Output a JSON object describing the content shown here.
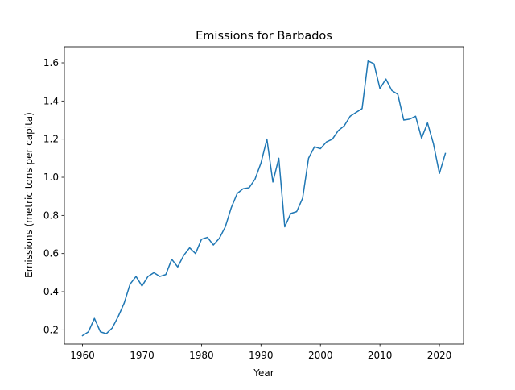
{
  "chart_data": {
    "type": "line",
    "title": "Emissions for Barbados",
    "xlabel": "Year",
    "ylabel": "Emissions (metric tons per capita)",
    "xlim": [
      1956.95,
      2024.05
    ],
    "ylim": [
      0.1255,
      1.6845
    ],
    "xticks": [
      1960,
      1970,
      1980,
      1990,
      2000,
      2010,
      2020
    ],
    "yticks": [
      0.2,
      0.4,
      0.6,
      0.8,
      1.0,
      1.2,
      1.4,
      1.6
    ],
    "ytick_labels": [
      "0.2",
      "0.4",
      "0.6",
      "0.8",
      "1.0",
      "1.2",
      "1.4",
      "1.6"
    ],
    "grid": false,
    "legend": "none",
    "series": [
      {
        "color": "#1f77b4",
        "x": [
          1960,
          1961,
          1962,
          1963,
          1964,
          1965,
          1966,
          1967,
          1968,
          1969,
          1970,
          1971,
          1972,
          1973,
          1974,
          1975,
          1976,
          1977,
          1978,
          1979,
          1980,
          1981,
          1982,
          1983,
          1984,
          1985,
          1986,
          1987,
          1988,
          1989,
          1990,
          1991,
          1992,
          1993,
          1994,
          1995,
          1996,
          1997,
          1998,
          1999,
          2000,
          2001,
          2002,
          2003,
          2004,
          2005,
          2006,
          2007,
          2008,
          2009,
          2010,
          2011,
          2012,
          2013,
          2014,
          2015,
          2016,
          2017,
          2018,
          2019,
          2020,
          2021
        ],
        "values": [
          0.17,
          0.19,
          0.26,
          0.19,
          0.18,
          0.21,
          0.27,
          0.34,
          0.44,
          0.48,
          0.43,
          0.48,
          0.5,
          0.48,
          0.49,
          0.57,
          0.53,
          0.59,
          0.63,
          0.6,
          0.675,
          0.685,
          0.645,
          0.68,
          0.74,
          0.84,
          0.915,
          0.94,
          0.945,
          0.99,
          1.075,
          1.2,
          0.975,
          1.1,
          0.74,
          0.81,
          0.82,
          0.89,
          1.1,
          1.16,
          1.15,
          1.185,
          1.2,
          1.245,
          1.27,
          1.32,
          1.34,
          1.36,
          1.61,
          1.595,
          1.465,
          1.515,
          1.455,
          1.435,
          1.3,
          1.305,
          1.32,
          1.205,
          1.285,
          1.175,
          1.02,
          1.125
        ]
      }
    ]
  }
}
